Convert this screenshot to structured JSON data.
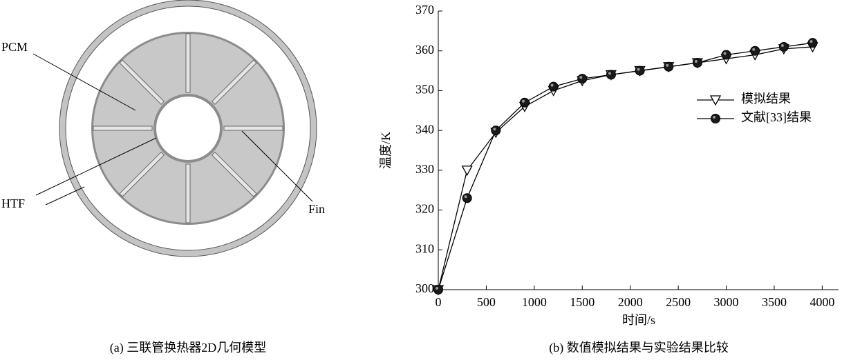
{
  "diagram": {
    "labels": {
      "pcm": "PCM",
      "htf": "HTF",
      "fin": "Fin"
    },
    "caption": "(a) 三联管换热器2D几何模型"
  },
  "chart_data": {
    "type": "line",
    "caption": "(b) 数值模拟结果与实验结果比较",
    "x_label": "时间/s",
    "y_label": "温度/K",
    "x": [
      0,
      300,
      600,
      900,
      1200,
      1500,
      1800,
      2100,
      2400,
      2700,
      3000,
      3300,
      3600,
      3900
    ],
    "series": [
      {
        "name": "模拟结果",
        "color": "#000000",
        "marker": "triangle-down",
        "values": [
          300,
          330,
          339.5,
          346,
          350,
          352.5,
          354,
          355,
          356,
          357,
          358,
          359,
          360.5,
          361
        ]
      },
      {
        "name": "文献[33]结果",
        "color": "#000000",
        "marker": "circle",
        "values": [
          300,
          323,
          340,
          347,
          351,
          353,
          354,
          355,
          356,
          357,
          359,
          360,
          361,
          362
        ]
      }
    ],
    "xlim": [
      0,
      4170
    ],
    "ylim": [
      300,
      370
    ],
    "xticks": [
      0,
      500,
      1000,
      1500,
      2000,
      2500,
      3000,
      3500,
      4000
    ],
    "yticks": [
      300,
      310,
      320,
      330,
      340,
      350,
      360,
      370
    ],
    "legend": "center right",
    "grid": false
  }
}
